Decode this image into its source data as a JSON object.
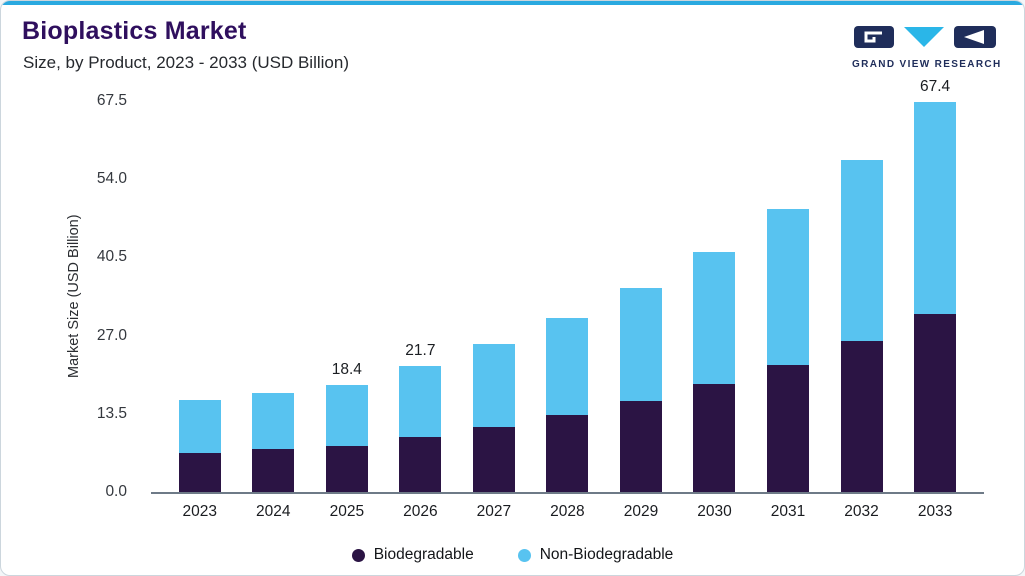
{
  "header": {
    "title": "Bioplastics Market",
    "subtitle": "Size, by Product, 2023 - 2033 (USD Billion)",
    "logo_text": "GRAND VIEW RESEARCH"
  },
  "chart_data": {
    "type": "bar",
    "stacked": true,
    "title": "Bioplastics Market Size, by Product, 2023 - 2033 (USD Billion)",
    "xlabel": "",
    "ylabel": "Market Size (USD Billion)",
    "ylim": [
      0,
      67.5
    ],
    "yticks": [
      0.0,
      13.5,
      27.0,
      40.5,
      54.0,
      67.5
    ],
    "ytick_labels": [
      "0.0",
      "13.5",
      "27.0",
      "40.5",
      "54.0",
      "67.5"
    ],
    "categories": [
      "2023",
      "2024",
      "2025",
      "2026",
      "2027",
      "2028",
      "2029",
      "2030",
      "2031",
      "2032",
      "2033"
    ],
    "series": [
      {
        "name": "Biodegradable",
        "color": "#2b1444",
        "values": [
          6.8,
          7.4,
          8.0,
          9.5,
          11.2,
          13.3,
          15.7,
          18.6,
          22.0,
          26.0,
          30.7
        ]
      },
      {
        "name": "Non-Biodegradable",
        "color": "#58c3f0",
        "values": [
          9.1,
          9.7,
          10.4,
          12.2,
          14.3,
          16.7,
          19.6,
          22.9,
          26.8,
          31.3,
          36.7
        ]
      }
    ],
    "totals": [
      15.9,
      17.1,
      18.4,
      21.7,
      25.5,
      30.0,
      35.3,
      41.5,
      48.8,
      57.3,
      67.4
    ],
    "bar_labels": [
      "",
      "",
      "18.4",
      "21.7",
      "",
      "",
      "",
      "",
      "",
      "",
      "67.4"
    ],
    "legend_position": "bottom",
    "grid": false
  },
  "colors": {
    "accent_blue": "#2aa9e0",
    "title_purple": "#2f0f5e",
    "logo_navy": "#1f2d5a",
    "biodegradable": "#2b1444",
    "non_biodegradable": "#58c3f0"
  }
}
